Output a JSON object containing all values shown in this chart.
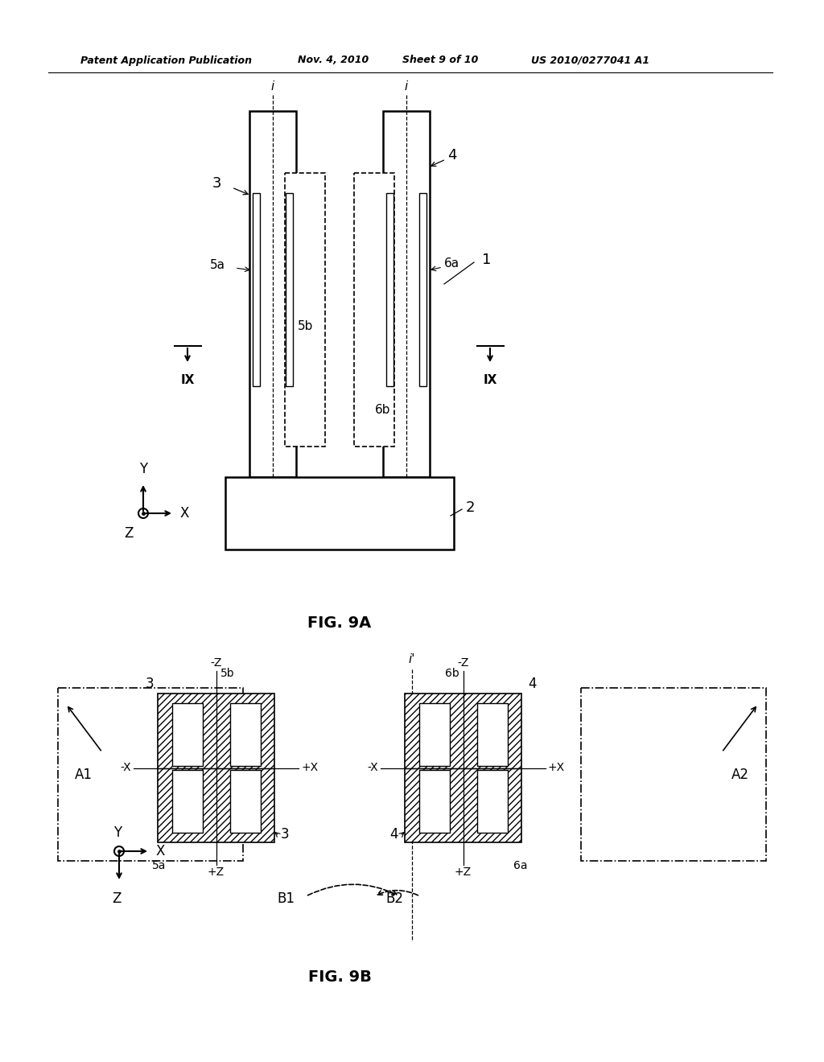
{
  "bg_color": "#ffffff",
  "header_text": "Patent Application Publication",
  "header_date": "Nov. 4, 2010",
  "header_sheet": "Sheet 9 of 10",
  "header_patent": "US 2010/0277041 A1",
  "fig9a_label": "FIG. 9A",
  "fig9b_label": "FIG. 9B"
}
